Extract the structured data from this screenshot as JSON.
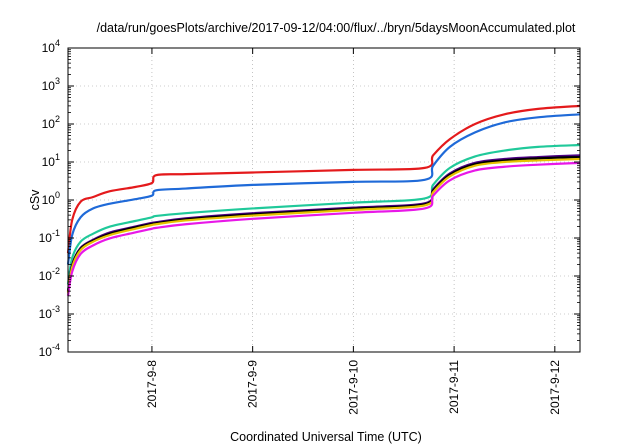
{
  "chart_data": {
    "type": "line",
    "title": "/data/run/goesPlots/archive/2017-09-12/04:00/flux/../bryn/5daysMoonAccumulated.plot",
    "xlabel": "Coordinated Universal Time (UTC)",
    "ylabel": "cSv",
    "xlim": [
      "2017-09-07 04:00",
      "2017-09-12 06:00"
    ],
    "ylim": [
      0.0001,
      10000
    ],
    "yscale": "log",
    "grid": true,
    "legend": "none",
    "x_ticks": [
      "2017-9-8",
      "2017-9-9",
      "2017-9-10",
      "2017-9-11",
      "2017-9-12"
    ],
    "y_ticks": [
      {
        "value": 0.0001,
        "base": "10",
        "exp": "-4"
      },
      {
        "value": 0.001,
        "base": "10",
        "exp": "-3"
      },
      {
        "value": 0.01,
        "base": "10",
        "exp": "-2"
      },
      {
        "value": 0.1,
        "base": "10",
        "exp": "-1"
      },
      {
        "value": 1,
        "base": "10",
        "exp": "0"
      },
      {
        "value": 10,
        "base": "10",
        "exp": "1"
      },
      {
        "value": 100,
        "base": "10",
        "exp": "2"
      },
      {
        "value": 1000,
        "base": "10",
        "exp": "3"
      },
      {
        "value": 10000,
        "base": "10",
        "exp": "4"
      }
    ],
    "x": [
      "2017-09-07 04:00",
      "2017-09-07 05:00",
      "2017-09-07 07:00",
      "2017-09-07 10:00",
      "2017-09-07 14:00",
      "2017-09-07 20:00",
      "2017-09-08 00:00",
      "2017-09-08 01:00",
      "2017-09-08 08:00",
      "2017-09-09 00:00",
      "2017-09-10 00:00",
      "2017-09-10 17:00",
      "2017-09-10 19:00",
      "2017-09-10 23:00",
      "2017-09-11 05:00",
      "2017-09-11 12:00",
      "2017-09-11 20:00",
      "2017-09-12 06:00"
    ],
    "series": [
      {
        "color": "#e41a1c",
        "values": [
          0.04,
          0.3,
          0.9,
          1.2,
          1.7,
          2.2,
          2.8,
          4.5,
          4.8,
          5.3,
          6.2,
          7.0,
          15,
          40,
          100,
          180,
          250,
          300
        ]
      },
      {
        "color": "#1f6ad8",
        "values": [
          0.02,
          0.12,
          0.35,
          0.6,
          0.8,
          1.05,
          1.3,
          1.8,
          2.0,
          2.5,
          3.0,
          3.4,
          8,
          25,
          60,
          110,
          150,
          180
        ]
      },
      {
        "color": "#20c99a",
        "values": [
          0.006,
          0.03,
          0.08,
          0.13,
          0.2,
          0.28,
          0.35,
          0.38,
          0.45,
          0.6,
          0.85,
          1.1,
          2.5,
          7,
          14,
          20,
          25,
          28
        ]
      },
      {
        "color": "#4b0082",
        "values": [
          0.004,
          0.02,
          0.055,
          0.09,
          0.14,
          0.2,
          0.25,
          0.26,
          0.33,
          0.45,
          0.63,
          0.82,
          1.9,
          5,
          9.5,
          12,
          13.5,
          15
        ]
      },
      {
        "color": "#000000",
        "values": [
          0.0038,
          0.019,
          0.052,
          0.085,
          0.13,
          0.19,
          0.235,
          0.245,
          0.31,
          0.42,
          0.59,
          0.77,
          1.75,
          4.6,
          8.8,
          11,
          12.5,
          13.5
        ]
      },
      {
        "color": "#e6c200",
        "values": [
          0.0035,
          0.017,
          0.048,
          0.08,
          0.12,
          0.175,
          0.22,
          0.23,
          0.29,
          0.39,
          0.55,
          0.72,
          1.6,
          4.2,
          8,
          10,
          11,
          12
        ]
      },
      {
        "color": "#e818e8",
        "values": [
          0.003,
          0.013,
          0.038,
          0.064,
          0.098,
          0.14,
          0.175,
          0.185,
          0.23,
          0.32,
          0.46,
          0.6,
          1.3,
          3.3,
          6,
          7.5,
          8.5,
          9.5
        ]
      }
    ]
  }
}
